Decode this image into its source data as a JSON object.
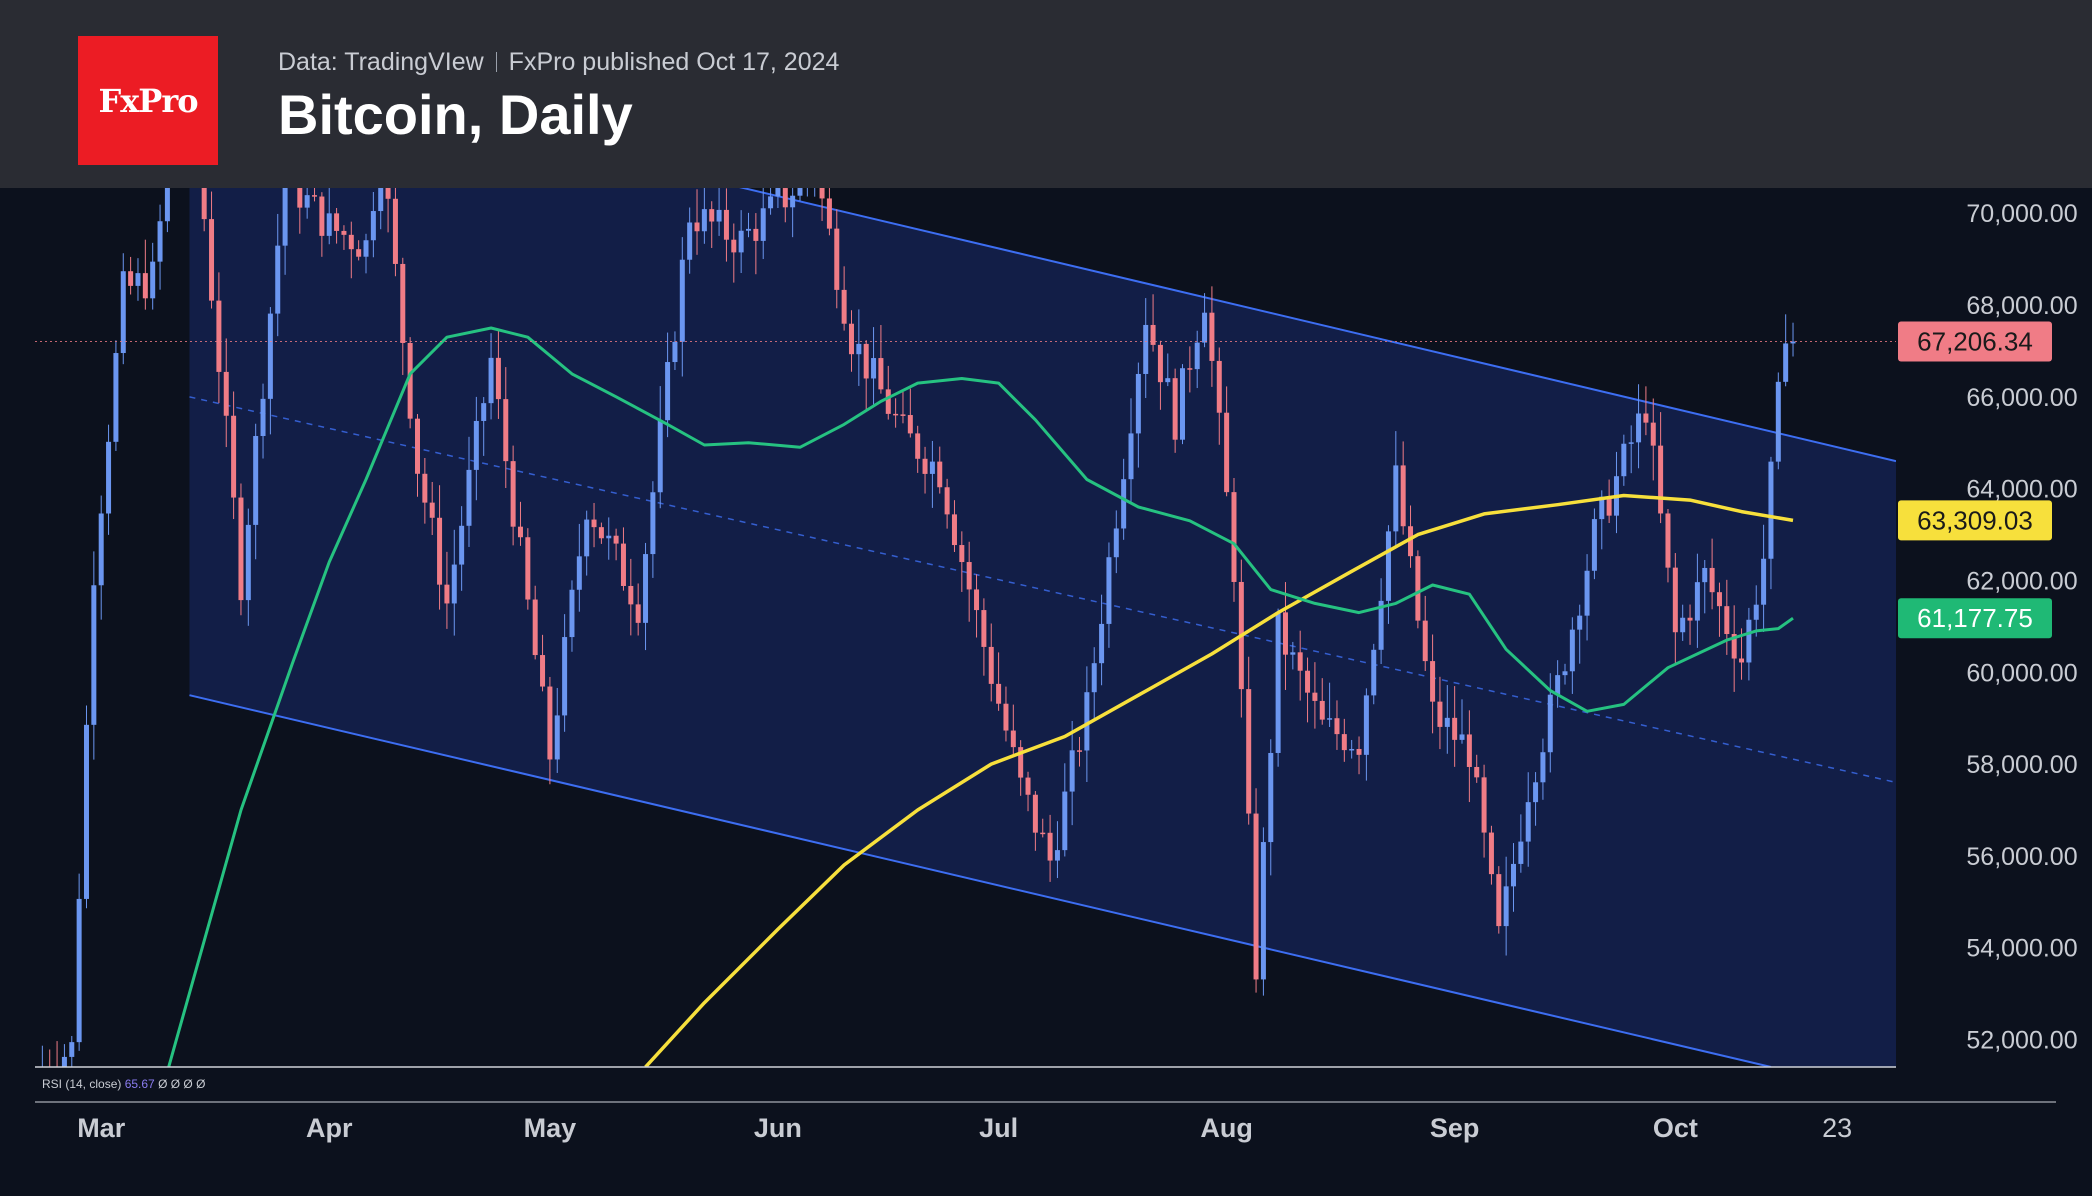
{
  "header": {
    "logo_text": "FxPro",
    "source": "Data: TradingVIew",
    "published": "FxPro published Oct 17, 2024",
    "title": "Bitcoin, Daily"
  },
  "colors": {
    "background": "#0c111d",
    "channel_fill": "#13204a",
    "channel_line": "#3d6ef2",
    "bull_candle": "#6b96f0",
    "bear_candle": "#f07c86",
    "ma_fast": "#26c281",
    "ma_slow": "#f7e03c",
    "price_badge": "#f07c86",
    "ma_slow_badge": "#f7e03c",
    "ma_fast_badge": "#1fb975"
  },
  "chart_data": {
    "type": "candlestick",
    "y_ticks": [
      "70,000.00",
      "68,000.00",
      "66,000.00",
      "64,000.00",
      "62,000.00",
      "60,000.00",
      "58,000.00",
      "56,000.00",
      "54,000.00",
      "52,000.00"
    ],
    "y_tick_values": [
      70000,
      68000,
      66000,
      64000,
      62000,
      60000,
      58000,
      56000,
      54000,
      52000
    ],
    "ylim": [
      51400,
      70550
    ],
    "x_labels": [
      "Mar",
      "Apr",
      "May",
      "Jun",
      "Jul",
      "Aug",
      "Sep",
      "Oct",
      "23"
    ],
    "x_label_dates": [
      "2024-03-01",
      "2024-04-01",
      "2024-05-01",
      "2024-06-01",
      "2024-07-01",
      "2024-08-01",
      "2024-09-01",
      "2024-10-01",
      "2024-10-23"
    ],
    "xlim": [
      "2024-02-21",
      "2024-10-31"
    ],
    "last_price": {
      "label": "67,206.34",
      "value": 67206.34
    },
    "ma_slow_last": {
      "label": "63,309.03",
      "value": 63309.03
    },
    "ma_fast_last": {
      "label": "61,177.75",
      "value": 61177.75
    },
    "indicator_label": "RSI (14, close)",
    "indicator_value": "65.67",
    "indicator_extra": "Ø Ø Ø Ø",
    "channel": {
      "upper": [
        [
          "2024-05-26",
          70600
        ],
        [
          "2024-10-31",
          64600
        ]
      ],
      "lower": [
        [
          "2024-03-13",
          59500
        ],
        [
          "2024-10-14",
          51400
        ]
      ],
      "mid": [
        [
          "2024-03-13",
          66000
        ],
        [
          "2024-10-31",
          57600
        ]
      ]
    },
    "anchors": [
      [
        "2024-02-21",
        51300
      ],
      [
        "2024-02-26",
        51800
      ],
      [
        "2024-02-29",
        62300
      ],
      [
        "2024-03-04",
        68300
      ],
      [
        "2024-03-08",
        68600
      ],
      [
        "2024-03-11",
        72000
      ],
      [
        "2024-03-14",
        71500
      ],
      [
        "2024-03-20",
        62000
      ],
      [
        "2024-03-26",
        70800
      ],
      [
        "2024-04-01",
        69700
      ],
      [
        "2024-04-06",
        69300
      ],
      [
        "2024-04-08",
        71500
      ],
      [
        "2024-04-13",
        64500
      ],
      [
        "2024-04-17",
        61500
      ],
      [
        "2024-04-23",
        66800
      ],
      [
        "2024-05-01",
        58200
      ],
      [
        "2024-05-06",
        63700
      ],
      [
        "2024-05-13",
        61500
      ],
      [
        "2024-05-20",
        70000
      ],
      [
        "2024-05-27",
        69400
      ],
      [
        "2024-06-06",
        71000
      ],
      [
        "2024-06-11",
        67300
      ],
      [
        "2024-06-18",
        65200
      ],
      [
        "2024-06-23",
        64400
      ],
      [
        "2024-06-28",
        61200
      ],
      [
        "2024-07-04",
        57500
      ],
      [
        "2024-07-08",
        55900
      ],
      [
        "2024-07-13",
        59200
      ],
      [
        "2024-07-21",
        67800
      ],
      [
        "2024-07-25",
        65500
      ],
      [
        "2024-07-29",
        68200
      ],
      [
        "2024-08-02",
        62300
      ],
      [
        "2024-08-05",
        53600
      ],
      [
        "2024-08-08",
        60900
      ],
      [
        "2024-08-14",
        58800
      ],
      [
        "2024-08-19",
        58500
      ],
      [
        "2024-08-24",
        64200
      ],
      [
        "2024-08-29",
        59100
      ],
      [
        "2024-09-03",
        58300
      ],
      [
        "2024-09-07",
        54200
      ],
      [
        "2024-09-11",
        57500
      ],
      [
        "2024-09-15",
        59700
      ],
      [
        "2024-09-20",
        63000
      ],
      [
        "2024-09-27",
        65800
      ],
      [
        "2024-10-01",
        60800
      ],
      [
        "2024-10-05",
        62100
      ],
      [
        "2024-10-10",
        60300
      ],
      [
        "2024-10-13",
        62500
      ],
      [
        "2024-10-16",
        67600
      ],
      [
        "2024-10-17",
        67206
      ]
    ],
    "ma_fast_series": [
      [
        "2024-03-10",
        51300
      ],
      [
        "2024-03-20",
        57000
      ],
      [
        "2024-03-27",
        60200
      ],
      [
        "2024-04-01",
        62400
      ],
      [
        "2024-04-06",
        64200
      ],
      [
        "2024-04-12",
        66500
      ],
      [
        "2024-04-17",
        67300
      ],
      [
        "2024-04-23",
        67500
      ],
      [
        "2024-04-28",
        67300
      ],
      [
        "2024-05-04",
        66500
      ],
      [
        "2024-05-10",
        66000
      ],
      [
        "2024-05-17",
        65400
      ],
      [
        "2024-05-22",
        64950
      ],
      [
        "2024-05-28",
        65000
      ],
      [
        "2024-06-04",
        64900
      ],
      [
        "2024-06-10",
        65400
      ],
      [
        "2024-06-15",
        65900
      ],
      [
        "2024-06-20",
        66300
      ],
      [
        "2024-06-26",
        66400
      ],
      [
        "2024-07-01",
        66300
      ],
      [
        "2024-07-06",
        65500
      ],
      [
        "2024-07-13",
        64200
      ],
      [
        "2024-07-20",
        63600
      ],
      [
        "2024-07-27",
        63300
      ],
      [
        "2024-08-02",
        62800
      ],
      [
        "2024-08-07",
        61800
      ],
      [
        "2024-08-13",
        61500
      ],
      [
        "2024-08-19",
        61300
      ],
      [
        "2024-08-24",
        61500
      ],
      [
        "2024-08-29",
        61900
      ],
      [
        "2024-09-03",
        61700
      ],
      [
        "2024-09-08",
        60500
      ],
      [
        "2024-09-14",
        59600
      ],
      [
        "2024-09-19",
        59150
      ],
      [
        "2024-09-24",
        59300
      ],
      [
        "2024-09-30",
        60100
      ],
      [
        "2024-10-04",
        60400
      ],
      [
        "2024-10-08",
        60700
      ],
      [
        "2024-10-12",
        60900
      ],
      [
        "2024-10-15",
        60950
      ],
      [
        "2024-10-17",
        61178
      ]
    ],
    "ma_slow_series": [
      [
        "2024-05-14",
        51400
      ],
      [
        "2024-05-22",
        52800
      ],
      [
        "2024-06-01",
        54400
      ],
      [
        "2024-06-10",
        55800
      ],
      [
        "2024-06-20",
        57000
      ],
      [
        "2024-06-30",
        58000
      ],
      [
        "2024-07-10",
        58600
      ],
      [
        "2024-07-20",
        59500
      ],
      [
        "2024-07-30",
        60400
      ],
      [
        "2024-08-08",
        61300
      ],
      [
        "2024-08-18",
        62200
      ],
      [
        "2024-08-27",
        63000
      ],
      [
        "2024-09-05",
        63450
      ],
      [
        "2024-09-15",
        63650
      ],
      [
        "2024-09-24",
        63850
      ],
      [
        "2024-10-03",
        63750
      ],
      [
        "2024-10-10",
        63500
      ],
      [
        "2024-10-17",
        63309
      ]
    ]
  }
}
